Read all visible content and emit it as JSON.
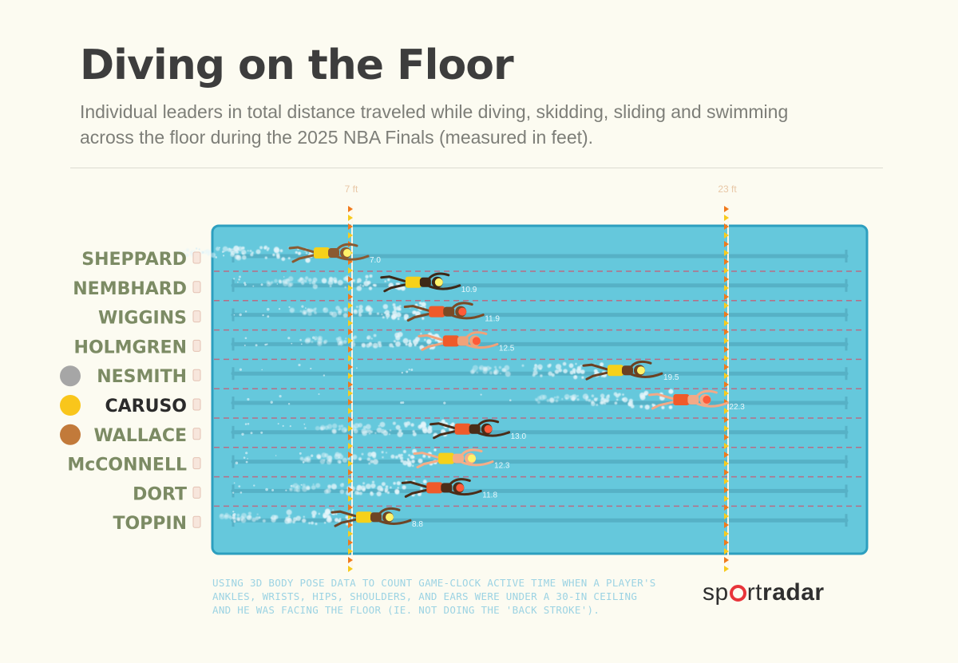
{
  "title": "Diving on the Floor",
  "subtitle": "Individual leaders in total distance traveled while diving, skidding, sliding and swimming across the floor during the 2025 NBA Finals (measured in feet).",
  "footnote": "USING 3D BODY POSE DATA TO COUNT GAME-CLOCK ACTIVE TIME WHEN A PLAYER'S ANKLES, WRISTS, HIPS, SHOULDERS, AND EARS WERE UNDER A 30-IN CEILING AND HE WAS FACING THE FLOOR (IE. NOT DOING THE 'BACK STROKE').",
  "logo": {
    "part1": "sp",
    "circle_letter": "o",
    "part2": "rt",
    "part3": "radar"
  },
  "colors": {
    "background": "#fcfbf1",
    "pool_water": "#65c8dc",
    "pool_border": "#2d9fbf",
    "lane_divider": "#b86d85",
    "name_text": "#7c8b64",
    "highlight_text": "#2b2b2b",
    "marker_orange": "#f07a1c",
    "marker_yellow": "#f7cb1c",
    "pacers_yellow": "#f6d11a",
    "thunder_orange": "#ef5a2a",
    "legend_gray": "#a6a6a6",
    "legend_yellow": "#f9c61b",
    "legend_bronze": "#c27a3a"
  },
  "legend_icons": [
    "gray-circle",
    "yellow-circle",
    "bronze-circle"
  ],
  "chart_data": {
    "type": "bar",
    "categories": [
      "SHEPPARD",
      "NEMBHARD",
      "WIGGINS",
      "HOLMGREN",
      "NESMITH",
      "CARUSO",
      "WALLACE",
      "McCONNELL",
      "DORT",
      "TOPPIN"
    ],
    "values": [
      7.0,
      10.9,
      11.9,
      12.5,
      19.5,
      22.3,
      13.0,
      12.3,
      11.8,
      8.8
    ],
    "value_labels": [
      "7.0",
      "10.9",
      "11.9",
      "12.5",
      "19.5",
      "22.3",
      "13.0",
      "12.3",
      "11.8",
      "8.8"
    ],
    "jersey_colors": [
      "#f6d11a",
      "#f6d11a",
      "#ef5a2a",
      "#ef5a2a",
      "#f6d11a",
      "#ef5a2a",
      "#ef5a2a",
      "#f6d11a",
      "#ef5a2a",
      "#f6d11a"
    ],
    "skin_tones": [
      "#8a5a32",
      "#3e2817",
      "#7a4a25",
      "#f0a27a",
      "#6b4022",
      "#f2a987",
      "#4a2c18",
      "#f4ad88",
      "#4c2d18",
      "#6e4526"
    ],
    "highlighted": [
      "NESMITH",
      "CARUSO",
      "WALLACE"
    ],
    "reference_lines": [
      {
        "value": 7,
        "label": "7 ft"
      },
      {
        "value": 23,
        "label": "23 ft"
      }
    ],
    "xlim": [
      0,
      23
    ],
    "title": "Diving on the Floor"
  }
}
